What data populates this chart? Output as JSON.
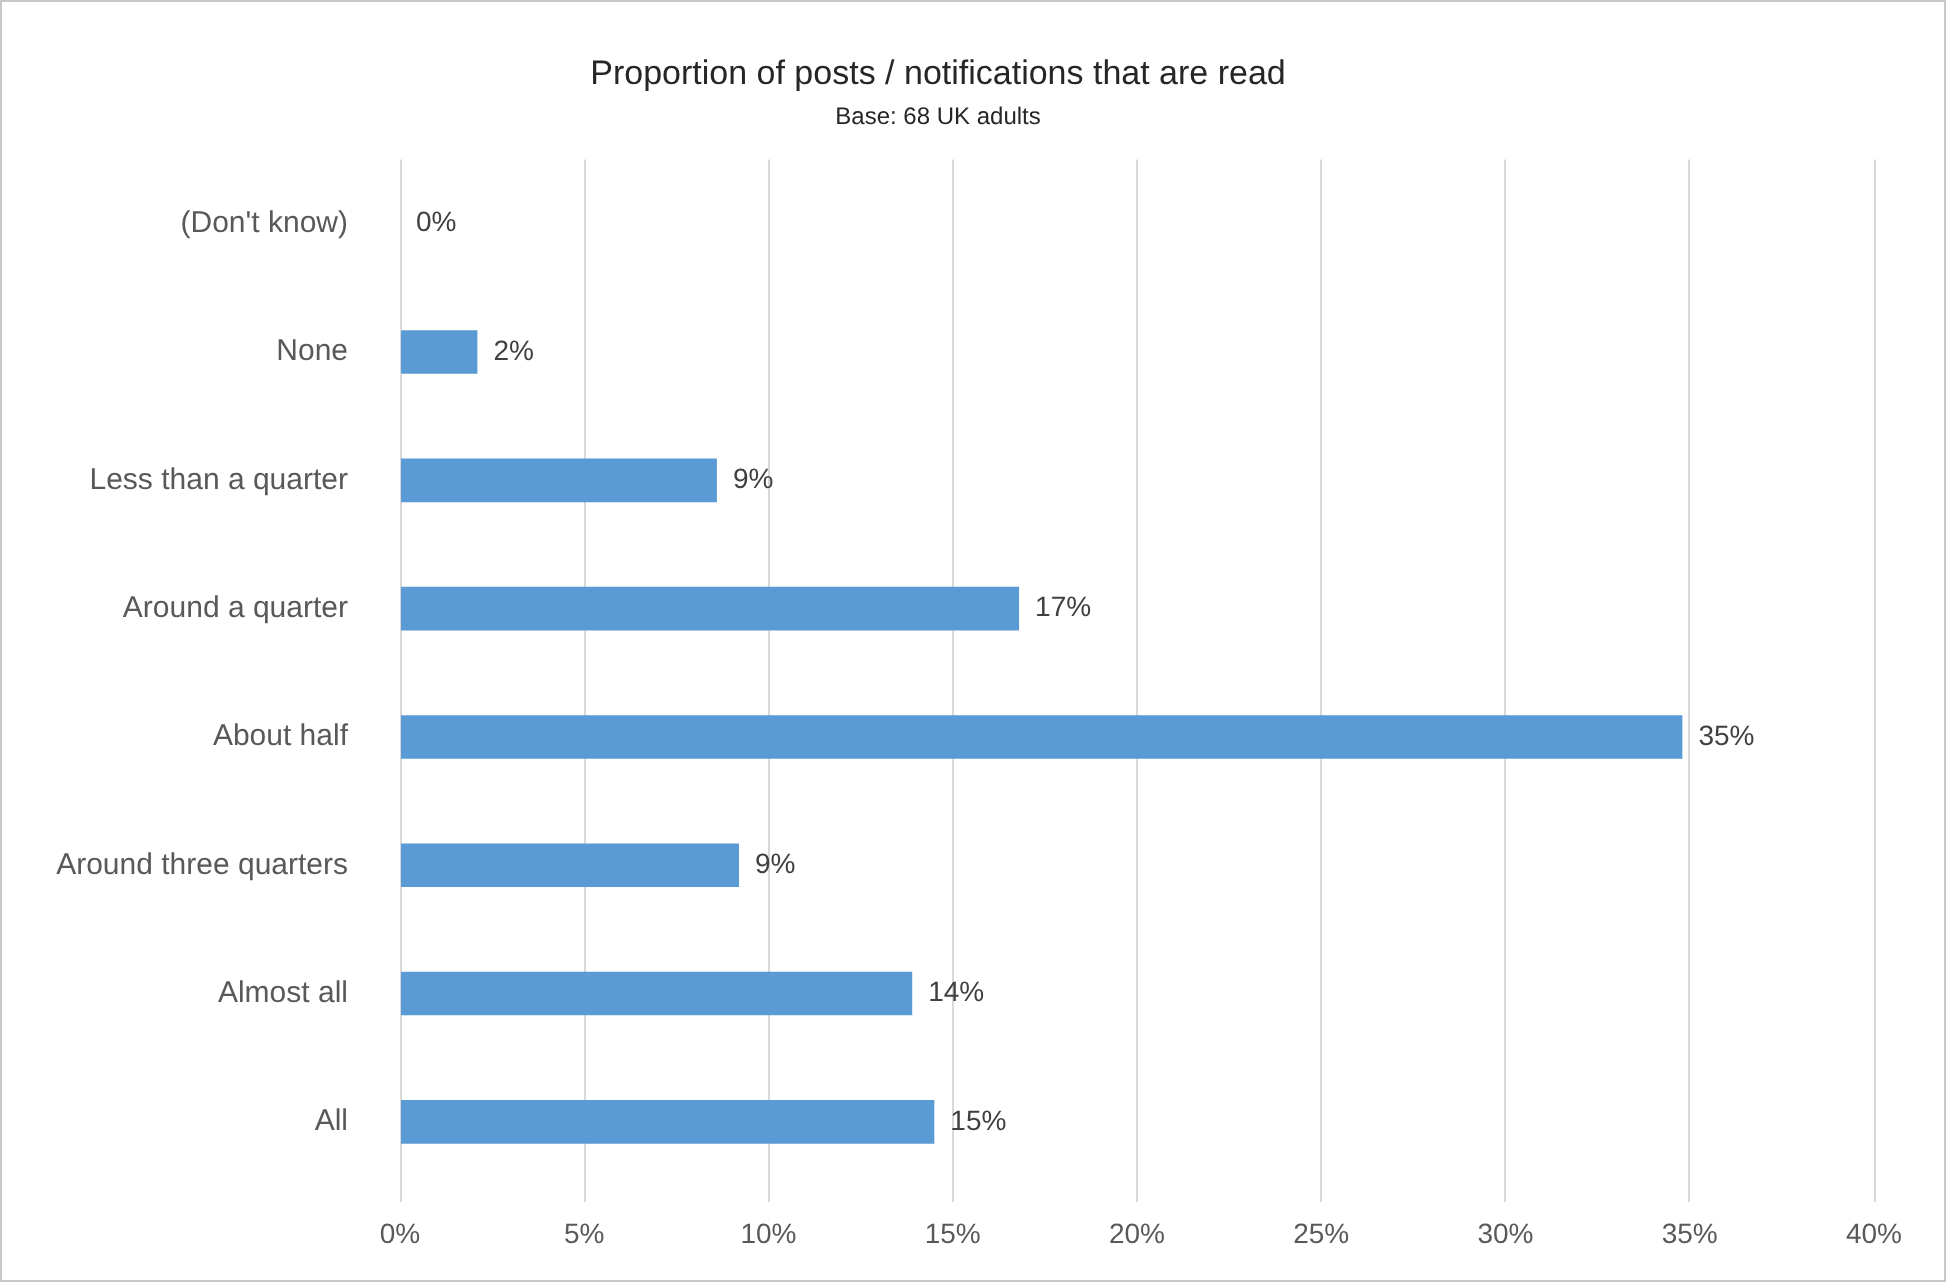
{
  "chart_data": {
    "type": "bar",
    "orientation": "horizontal",
    "title": "Proportion of posts / notifications that are read",
    "subtitle": "Base: 68 UK adults",
    "categories": [
      "(Don't know)",
      "None",
      "Less than a quarter",
      "Around a quarter",
      "About half",
      "Around three quarters",
      "Almost all",
      "All"
    ],
    "values": [
      0,
      2.1,
      8.6,
      16.8,
      34.8,
      9.2,
      13.9,
      14.5
    ],
    "value_labels": [
      "0%",
      "2%",
      "9%",
      "17%",
      "35%",
      "9%",
      "14%",
      "15%"
    ],
    "color": "#5b9bd5",
    "xlim": [
      0,
      40
    ],
    "xticks": [
      {
        "value": 0,
        "label": "0%"
      },
      {
        "value": 5,
        "label": "5%"
      },
      {
        "value": 10,
        "label": "10%"
      },
      {
        "value": 15,
        "label": "15%"
      },
      {
        "value": 20,
        "label": "20%"
      },
      {
        "value": 25,
        "label": "25%"
      },
      {
        "value": 30,
        "label": "30%"
      },
      {
        "value": 35,
        "label": "35%"
      },
      {
        "value": 40,
        "label": "40%"
      }
    ],
    "grid": "x"
  }
}
